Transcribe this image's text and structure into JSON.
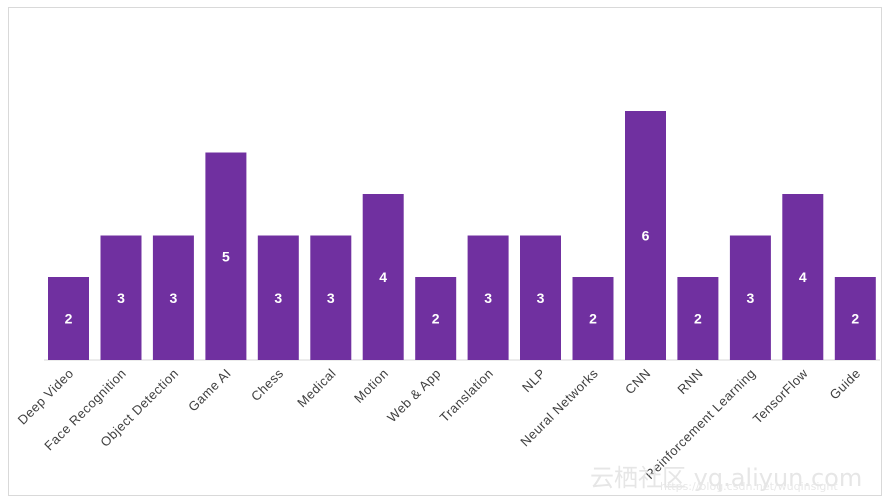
{
  "chart_data": {
    "type": "bar",
    "title": "",
    "xlabel": "",
    "ylabel": "",
    "categories": [
      "Deep Video",
      "Face Recognition",
      "Object Detection",
      "Game AI",
      "Chess",
      "Medical",
      "Motion",
      "Web & App",
      "Translation",
      "NLP",
      "Neural Networks",
      "CNN",
      "RNN",
      "Reinforcement Learning",
      "TensorFlow",
      "Guide"
    ],
    "values": [
      2,
      3,
      3,
      5,
      3,
      3,
      4,
      2,
      3,
      3,
      2,
      6,
      2,
      3,
      4,
      2
    ],
    "ylim": [
      0,
      7
    ],
    "bar_color": "#7030a0",
    "data_labels": true,
    "grid": false,
    "legend": "none"
  },
  "watermark": {
    "text": "云栖社区 yq.aliyun.com",
    "subtext": "https://blog.csdn.net/wuqinsight"
  }
}
